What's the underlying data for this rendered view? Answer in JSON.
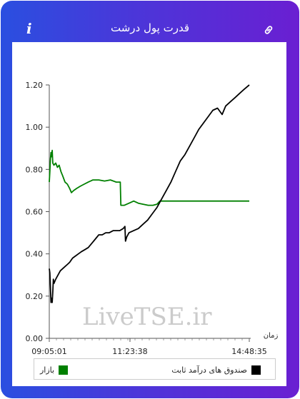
{
  "header": {
    "title": "قدرت پول درشت",
    "info_icon": "info-icon",
    "info_glyph": "i",
    "link_icon": "link-icon"
  },
  "watermark": "LiveTSE.ir",
  "colors": {
    "frame_left": "#2a4fe0",
    "frame_right": "#6a1fd2",
    "market": "#008000",
    "fund": "#000000"
  },
  "chart_data": {
    "type": "line",
    "title": "",
    "xlabel": "زمان",
    "ylabel": "",
    "ylim": [
      0,
      1.2
    ],
    "yticks": [
      "0.00",
      "0.20",
      "0.40",
      "0.60",
      "0.80",
      "1.00",
      "1.20"
    ],
    "xlim": [
      "09:05:01",
      "14:48:35"
    ],
    "xticks": [
      "09:05:01",
      "11:23:38",
      "14:48:35"
    ],
    "grid": false,
    "legend_position": "bottom",
    "series": [
      {
        "name": "بازار",
        "color": "#008000",
        "points": [
          [
            "09:05:01",
            0.74
          ],
          [
            "09:06:00",
            0.79
          ],
          [
            "09:07:00",
            0.85
          ],
          [
            "09:08:00",
            0.88
          ],
          [
            "09:09:00",
            0.86
          ],
          [
            "09:10:00",
            0.89
          ],
          [
            "09:11:00",
            0.83
          ],
          [
            "09:13:00",
            0.82
          ],
          [
            "09:16:00",
            0.83
          ],
          [
            "09:19:00",
            0.81
          ],
          [
            "09:22:00",
            0.82
          ],
          [
            "09:25:00",
            0.79
          ],
          [
            "09:28:00",
            0.77
          ],
          [
            "09:32:00",
            0.74
          ],
          [
            "09:36:00",
            0.73
          ],
          [
            "09:40:00",
            0.71
          ],
          [
            "09:43:00",
            0.69
          ],
          [
            "09:47:00",
            0.7
          ],
          [
            "09:52:00",
            0.71
          ],
          [
            "09:58:00",
            0.72
          ],
          [
            "10:05:00",
            0.73
          ],
          [
            "10:12:00",
            0.74
          ],
          [
            "10:20:00",
            0.75
          ],
          [
            "10:30:00",
            0.75
          ],
          [
            "10:40:00",
            0.745
          ],
          [
            "10:50:00",
            0.75
          ],
          [
            "11:00:00",
            0.74
          ],
          [
            "11:07:00",
            0.74
          ],
          [
            "11:08:00",
            0.63
          ],
          [
            "11:14:00",
            0.63
          ],
          [
            "11:22:00",
            0.64
          ],
          [
            "11:30:00",
            0.65
          ],
          [
            "11:38:00",
            0.64
          ],
          [
            "11:46:00",
            0.635
          ],
          [
            "11:55:00",
            0.63
          ],
          [
            "12:03:00",
            0.63
          ],
          [
            "12:10:00",
            0.635
          ],
          [
            "12:15:00",
            0.65
          ],
          [
            "14:48:35",
            0.65
          ]
        ]
      },
      {
        "name": "صندوق های درآمد ثابت",
        "color": "#000000",
        "points": [
          [
            "09:05:01",
            0.33
          ],
          [
            "09:06:00",
            0.31
          ],
          [
            "09:07:00",
            0.24
          ],
          [
            "09:08:00",
            0.17
          ],
          [
            "09:09:00",
            0.19
          ],
          [
            "09:10:00",
            0.17
          ],
          [
            "09:11:00",
            0.22
          ],
          [
            "09:12:00",
            0.28
          ],
          [
            "09:13:00",
            0.26
          ],
          [
            "09:16:00",
            0.28
          ],
          [
            "09:20:00",
            0.3
          ],
          [
            "09:24:00",
            0.32
          ],
          [
            "09:28:00",
            0.33
          ],
          [
            "09:32:00",
            0.34
          ],
          [
            "09:36:00",
            0.35
          ],
          [
            "09:40:00",
            0.36
          ],
          [
            "09:45:00",
            0.38
          ],
          [
            "09:50:00",
            0.39
          ],
          [
            "09:55:00",
            0.4
          ],
          [
            "10:00:00",
            0.41
          ],
          [
            "10:06:00",
            0.42
          ],
          [
            "10:12:00",
            0.43
          ],
          [
            "10:18:00",
            0.45
          ],
          [
            "10:24:00",
            0.47
          ],
          [
            "10:30:00",
            0.49
          ],
          [
            "10:36:00",
            0.49
          ],
          [
            "10:42:00",
            0.5
          ],
          [
            "10:48:00",
            0.5
          ],
          [
            "10:55:00",
            0.51
          ],
          [
            "11:00:00",
            0.51
          ],
          [
            "11:06:00",
            0.51
          ],
          [
            "11:12:00",
            0.52
          ],
          [
            "11:15:00",
            0.53
          ],
          [
            "11:16:00",
            0.46
          ],
          [
            "11:18:00",
            0.48
          ],
          [
            "11:22:00",
            0.5
          ],
          [
            "11:30:00",
            0.51
          ],
          [
            "11:38:00",
            0.52
          ],
          [
            "11:46:00",
            0.54
          ],
          [
            "11:54:00",
            0.56
          ],
          [
            "12:02:00",
            0.59
          ],
          [
            "12:10:00",
            0.62
          ],
          [
            "12:18:00",
            0.66
          ],
          [
            "12:26:00",
            0.7
          ],
          [
            "12:34:00",
            0.74
          ],
          [
            "12:42:00",
            0.79
          ],
          [
            "12:50:00",
            0.84
          ],
          [
            "12:58:00",
            0.87
          ],
          [
            "13:06:00",
            0.91
          ],
          [
            "13:14:00",
            0.95
          ],
          [
            "13:22:00",
            0.99
          ],
          [
            "13:30:00",
            1.02
          ],
          [
            "13:38:00",
            1.05
          ],
          [
            "13:46:00",
            1.08
          ],
          [
            "13:54:00",
            1.09
          ],
          [
            "14:02:00",
            1.06
          ],
          [
            "14:08:00",
            1.1
          ],
          [
            "14:16:00",
            1.12
          ],
          [
            "14:24:00",
            1.14
          ],
          [
            "14:32:00",
            1.16
          ],
          [
            "14:40:00",
            1.18
          ],
          [
            "14:48:35",
            1.2
          ]
        ]
      }
    ]
  }
}
